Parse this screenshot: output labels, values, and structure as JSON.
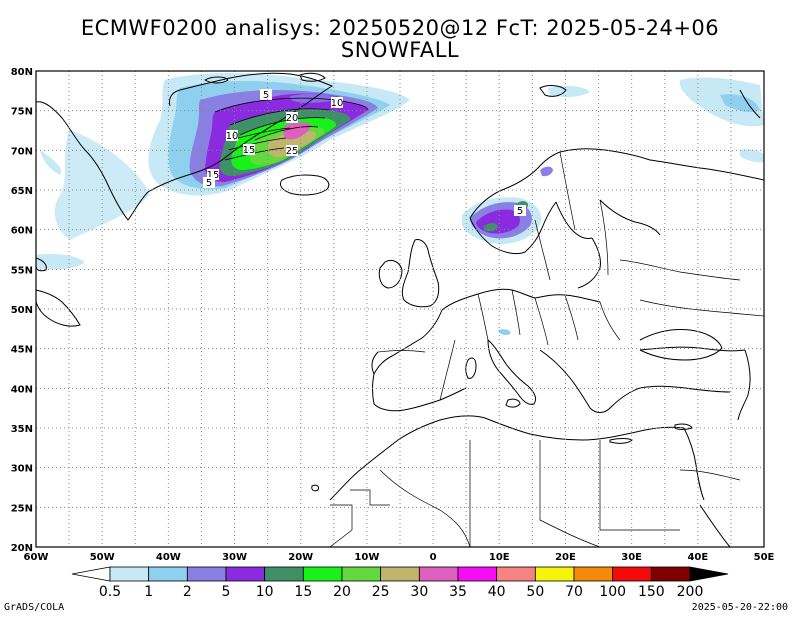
{
  "title": {
    "line1": "ECMWF0200  analisys: 20250520@12 FcT: 2025-05-24+06",
    "line2": "SNOWFALL"
  },
  "map": {
    "lon_range": [
      -60,
      50
    ],
    "lat_range": [
      20,
      80
    ],
    "grid": "dotted",
    "lon_labels": [
      "60W",
      "50W",
      "40W",
      "30W",
      "20W",
      "10W",
      "0",
      "10E",
      "20E",
      "30E",
      "40E",
      "50E"
    ],
    "lat_labels": [
      "80N",
      "75N",
      "70N",
      "65N",
      "60N",
      "55N",
      "50N",
      "45N",
      "40N",
      "35N",
      "30N",
      "25N",
      "20N"
    ],
    "contour_labels": [
      "5",
      "10",
      "20",
      "10",
      "15",
      "25",
      "15",
      "5",
      "5"
    ]
  },
  "colorbar": {
    "levels": [
      "0.5",
      "1",
      "2",
      "5",
      "10",
      "15",
      "20",
      "25",
      "30",
      "35",
      "40",
      "50",
      "70",
      "100",
      "150",
      "200"
    ],
    "colors": [
      "#c6e9f5",
      "#8fd0ee",
      "#8a7fe3",
      "#8b2be0",
      "#3f8f67",
      "#19f219",
      "#64d83f",
      "#c0b56c",
      "#de5fbd",
      "#f50ef5",
      "#f58383",
      "#f5f50a",
      "#f58a0a",
      "#f50a0a",
      "#800000"
    ]
  },
  "footer": {
    "left": "GrADS/COLA",
    "right": "2025-05-20-22:00"
  }
}
